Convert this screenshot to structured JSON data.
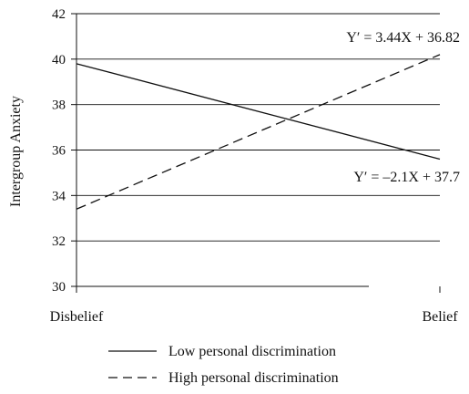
{
  "chart_data": {
    "type": "line",
    "categories": [
      "Disbelief",
      "Belief"
    ],
    "ylabel": "Intergroup Anxiety",
    "xlabel": "",
    "ylim": [
      30,
      42
    ],
    "yticks": [
      30,
      32,
      34,
      36,
      38,
      40,
      42
    ],
    "grid": true,
    "series": [
      {
        "name": "Low personal discrimination",
        "style": "solid",
        "values": [
          39.8,
          35.6
        ],
        "equation": "Y′ = –2.1X + 37.7"
      },
      {
        "name": "High personal discrimination",
        "style": "dashed",
        "values": [
          33.4,
          40.2
        ],
        "equation": "Y′ = 3.44X + 36.82"
      }
    ],
    "legend_placement": "bottom"
  }
}
